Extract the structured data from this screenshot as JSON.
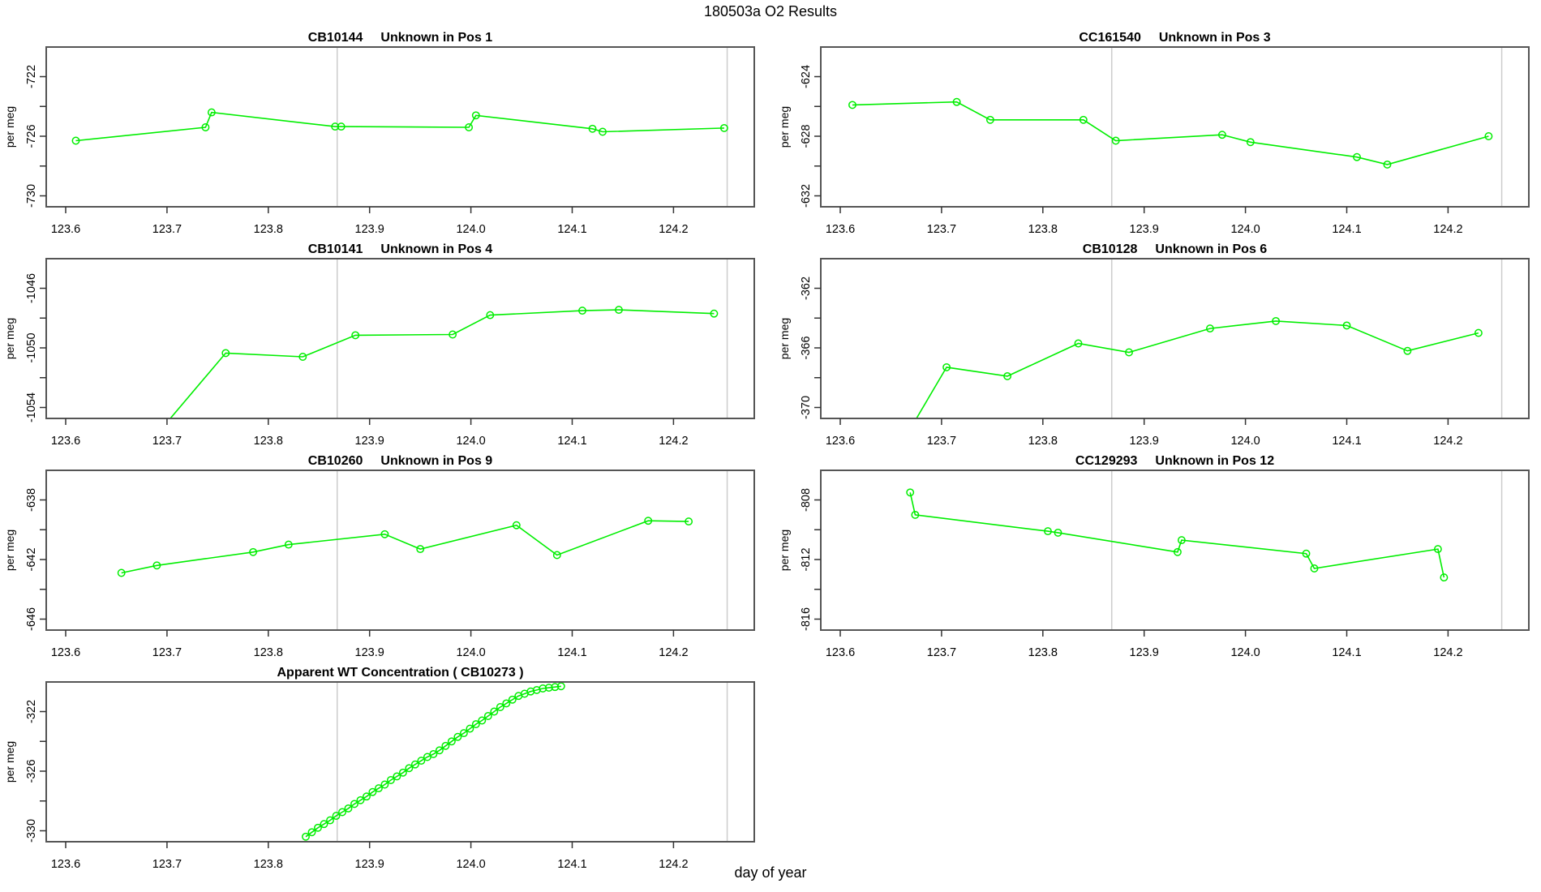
{
  "title": "180503a  O2 Results",
  "chart_data": {
    "type": "line",
    "xlabel": "day of year",
    "ylabel": "per meg",
    "x_ticks": [
      "123.6",
      "123.7",
      "123.8",
      "123.9",
      "124.0",
      "124.1",
      "124.2"
    ],
    "reference_lines_x": [
      123.868,
      124.253
    ],
    "marker": "open-circle",
    "line_color": "#00ee00",
    "reference_line_color": "#cccccc",
    "plots": [
      {
        "id": "pos1",
        "row": 0,
        "col": 0,
        "title_code": "CB10144",
        "title_text": "Unknown in Pos 1",
        "y_ticks": [
          -722,
          -726,
          -730
        ],
        "x": [
          123.61,
          123.738,
          123.744,
          123.866,
          123.872,
          123.998,
          124.005,
          124.12,
          124.13,
          124.25
        ],
        "y": [
          -726.3,
          -725.4,
          -724.4,
          -725.35,
          -725.35,
          -725.4,
          -724.6,
          -725.5,
          -725.7,
          -725.45
        ]
      },
      {
        "id": "pos3",
        "row": 0,
        "col": 1,
        "title_code": "CC161540",
        "title_text": "Unknown in Pos 3",
        "y_ticks": [
          -624,
          -628,
          -632
        ],
        "x": [
          123.612,
          123.715,
          123.748,
          123.84,
          123.872,
          123.977,
          124.005,
          124.11,
          124.14,
          124.24
        ],
        "y": [
          -625.9,
          -625.7,
          -626.9,
          -626.9,
          -628.3,
          -627.9,
          -628.4,
          -629.4,
          -629.9,
          -628.0
        ]
      },
      {
        "id": "pos4",
        "row": 1,
        "col": 0,
        "title_code": "CB10141",
        "title_text": "Unknown in Pos 4",
        "y_ticks": [
          -1046,
          -1050,
          -1054
        ],
        "x": [
          123.69,
          123.758,
          123.834,
          123.886,
          123.982,
          124.019,
          124.11,
          124.146,
          124.24
        ],
        "y": [
          -1055.8,
          -1050.35,
          -1050.6,
          -1049.15,
          -1049.1,
          -1047.8,
          -1047.5,
          -1047.45,
          -1047.7
        ]
      },
      {
        "id": "pos6",
        "row": 1,
        "col": 1,
        "title_code": "CB10128",
        "title_text": "Unknown in Pos 6",
        "y_ticks": [
          -362,
          -366,
          -370
        ],
        "x": [
          123.66,
          123.705,
          123.765,
          123.835,
          123.885,
          123.965,
          124.03,
          124.1,
          124.16,
          124.23
        ],
        "y": [
          -372.5,
          -367.3,
          -367.9,
          -365.7,
          -366.3,
          -364.7,
          -364.2,
          -364.5,
          -366.2,
          -365.0
        ]
      },
      {
        "id": "pos9",
        "row": 2,
        "col": 0,
        "title_code": "CB10260",
        "title_text": "Unknown in Pos 9",
        "y_ticks": [
          -638,
          -642,
          -646
        ],
        "x": [
          123.655,
          123.69,
          123.785,
          123.82,
          123.915,
          123.95,
          124.045,
          124.085,
          124.175,
          124.215
        ],
        "y": [
          -642.9,
          -642.4,
          -641.5,
          -641.0,
          -640.3,
          -641.3,
          -639.7,
          -641.7,
          -639.4,
          -639.45
        ]
      },
      {
        "id": "pos12",
        "row": 2,
        "col": 1,
        "title_code": "CC129293",
        "title_text": "Unknown in Pos 12",
        "y_ticks": [
          -808,
          -812,
          -816
        ],
        "x": [
          123.669,
          123.674,
          123.805,
          123.815,
          123.933,
          123.937,
          124.06,
          124.068,
          124.19,
          124.196
        ],
        "y": [
          -807.5,
          -809.0,
          -810.1,
          -810.2,
          -811.5,
          -810.7,
          -811.6,
          -812.6,
          -811.3,
          -813.2
        ]
      },
      {
        "id": "wt",
        "row": 3,
        "col": 0,
        "title_code": "",
        "title_text": "Apparent WT Concentration ( CB10273 )",
        "y_ticks": [
          -322,
          -326,
          -330
        ],
        "x": [
          123.837,
          123.843,
          123.849,
          123.855,
          123.861,
          123.867,
          123.873,
          123.879,
          123.885,
          123.891,
          123.897,
          123.903,
          123.909,
          123.915,
          123.921,
          123.927,
          123.933,
          123.939,
          123.945,
          123.951,
          123.957,
          123.963,
          123.969,
          123.975,
          123.981,
          123.987,
          123.993,
          123.999,
          124.005,
          124.011,
          124.017,
          124.023,
          124.029,
          124.035,
          124.041,
          124.047,
          124.053,
          124.059,
          124.065,
          124.071,
          124.077,
          124.083,
          124.089
        ],
        "y": [
          -330.4,
          -330.1,
          -329.8,
          -329.55,
          -329.3,
          -329.0,
          -328.75,
          -328.5,
          -328.2,
          -327.95,
          -327.7,
          -327.4,
          -327.15,
          -326.9,
          -326.6,
          -326.35,
          -326.1,
          -325.8,
          -325.55,
          -325.3,
          -325.05,
          -324.85,
          -324.6,
          -324.3,
          -324.0,
          -323.7,
          -323.45,
          -323.15,
          -322.85,
          -322.6,
          -322.3,
          -322.0,
          -321.7,
          -321.45,
          -321.2,
          -320.95,
          -320.8,
          -320.65,
          -320.55,
          -320.45,
          -320.4,
          -320.35,
          -320.3
        ]
      }
    ]
  }
}
